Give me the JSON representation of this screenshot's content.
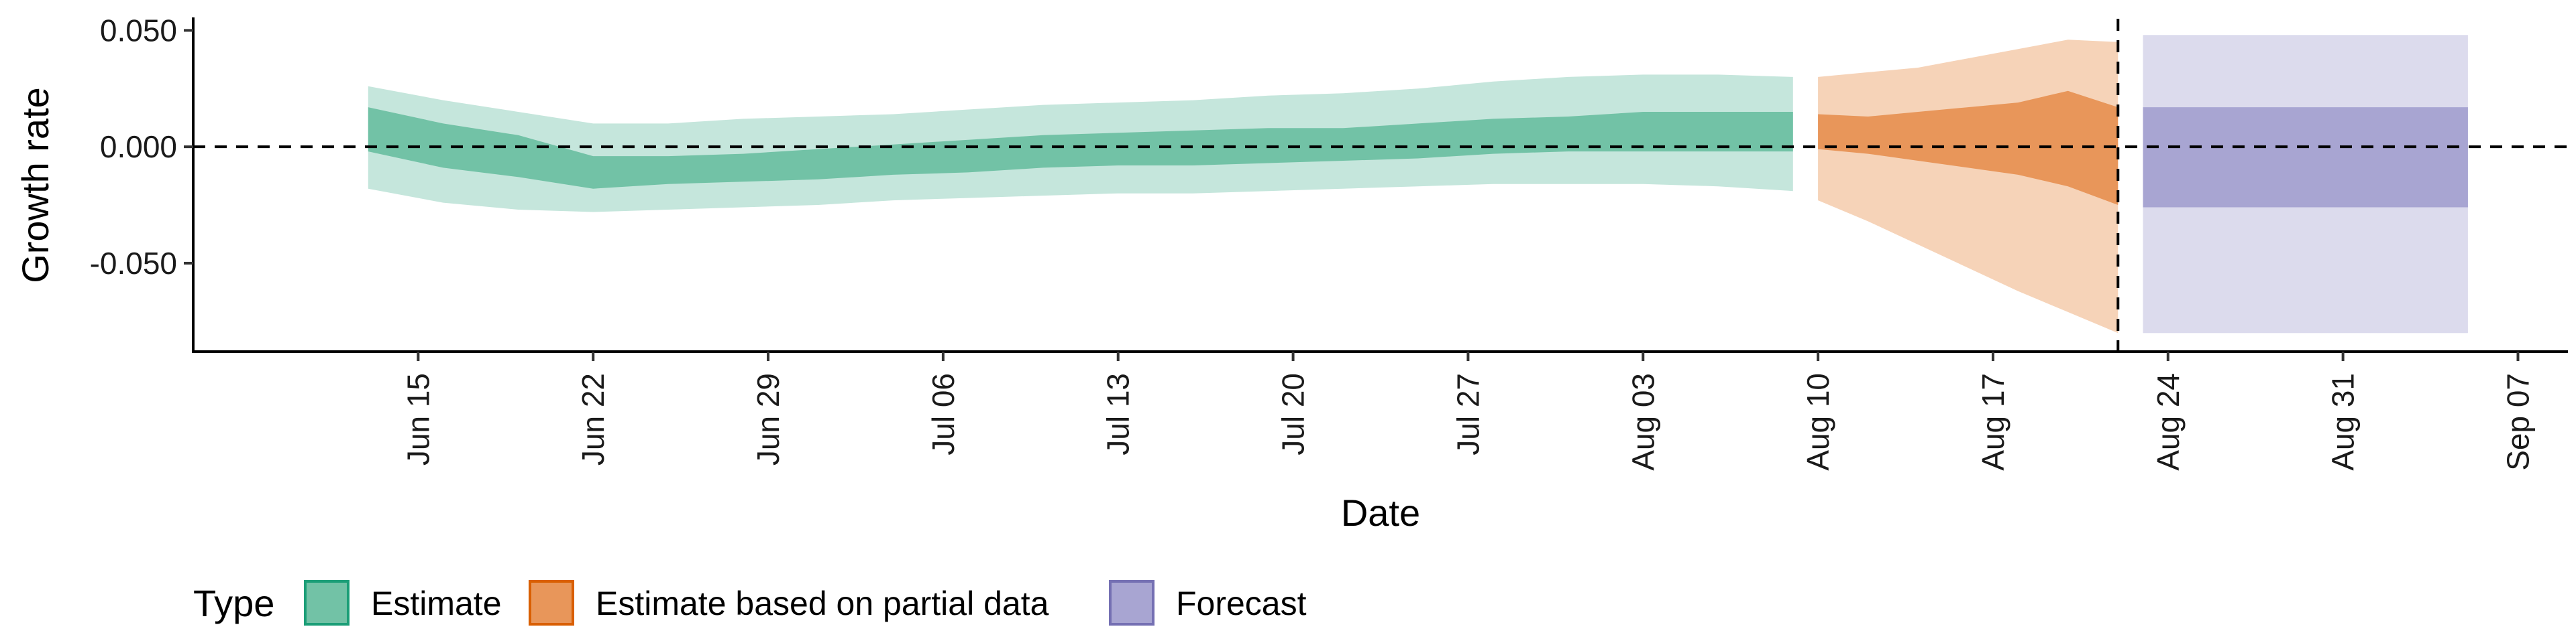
{
  "chart_data": {
    "type": "area",
    "xlabel": "Date",
    "ylabel": "Growth rate",
    "xlim": [
      "2020-06-06",
      "2020-09-09"
    ],
    "ylim": [
      -0.088,
      0.055
    ],
    "x_ticks": [
      "2020-06-15",
      "2020-06-22",
      "2020-06-29",
      "2020-07-06",
      "2020-07-13",
      "2020-07-20",
      "2020-07-27",
      "2020-08-03",
      "2020-08-10",
      "2020-08-17",
      "2020-08-24",
      "2020-08-31",
      "2020-09-07"
    ],
    "x_tick_labels": [
      "Jun 15",
      "Jun 22",
      "Jun 29",
      "Jul 06",
      "Jul 13",
      "Jul 20",
      "Jul 27",
      "Aug 03",
      "Aug 10",
      "Aug 17",
      "Aug 24",
      "Aug 31",
      "Sep 07"
    ],
    "y_ticks": [
      0.05,
      0.0,
      -0.05
    ],
    "y_tick_labels": [
      "0.050",
      "0.000",
      "-0.050"
    ],
    "reference_lines": {
      "horizontal_y": 0.0,
      "vertical_x": "2020-08-22"
    },
    "grid": false,
    "legend": {
      "title": "Type",
      "position": "bottom-left"
    },
    "series": [
      {
        "name": "Estimate",
        "color": "#1b9e77",
        "fill_dark": "#72c2a6",
        "fill_light": "#c5e6dc",
        "x": [
          "2020-06-13",
          "2020-06-16",
          "2020-06-19",
          "2020-06-22",
          "2020-06-25",
          "2020-06-28",
          "2020-07-01",
          "2020-07-04",
          "2020-07-07",
          "2020-07-10",
          "2020-07-13",
          "2020-07-16",
          "2020-07-19",
          "2020-07-22",
          "2020-07-25",
          "2020-07-28",
          "2020-07-31",
          "2020-08-03",
          "2020-08-06",
          "2020-08-09"
        ],
        "median_upper": [
          0.017,
          0.01,
          0.005,
          -0.004,
          -0.004,
          -0.003,
          -0.001,
          0.001,
          0.003,
          0.005,
          0.006,
          0.007,
          0.008,
          0.008,
          0.01,
          0.012,
          0.013,
          0.015,
          0.015,
          0.015
        ],
        "median_lower": [
          -0.002,
          -0.009,
          -0.013,
          -0.018,
          -0.016,
          -0.015,
          -0.014,
          -0.012,
          -0.011,
          -0.009,
          -0.008,
          -0.008,
          -0.007,
          -0.006,
          -0.005,
          -0.003,
          -0.002,
          -0.002,
          -0.002,
          -0.002
        ],
        "outer_upper": [
          0.026,
          0.02,
          0.015,
          0.01,
          0.01,
          0.012,
          0.013,
          0.014,
          0.016,
          0.018,
          0.019,
          0.02,
          0.022,
          0.023,
          0.025,
          0.028,
          0.03,
          0.031,
          0.031,
          0.03
        ],
        "outer_lower": [
          -0.018,
          -0.024,
          -0.027,
          -0.028,
          -0.027,
          -0.026,
          -0.025,
          -0.023,
          -0.022,
          -0.021,
          -0.02,
          -0.02,
          -0.019,
          -0.018,
          -0.017,
          -0.016,
          -0.016,
          -0.016,
          -0.017,
          -0.019
        ]
      },
      {
        "name": "Estimate based on partial data",
        "color": "#d95f02",
        "fill_dark": "#e8965a",
        "fill_light": "#f6d3b8",
        "x": [
          "2020-08-10",
          "2020-08-12",
          "2020-08-14",
          "2020-08-16",
          "2020-08-18",
          "2020-08-20",
          "2020-08-22"
        ],
        "median_upper": [
          0.014,
          0.013,
          0.015,
          0.017,
          0.019,
          0.024,
          0.017
        ],
        "median_lower": [
          -0.001,
          -0.003,
          -0.006,
          -0.009,
          -0.012,
          -0.017,
          -0.025
        ],
        "outer_upper": [
          0.03,
          0.032,
          0.034,
          0.038,
          0.042,
          0.046,
          0.045
        ],
        "outer_lower": [
          -0.023,
          -0.032,
          -0.042,
          -0.052,
          -0.062,
          -0.071,
          -0.08
        ]
      },
      {
        "name": "Forecast",
        "color": "#7570b3",
        "fill_dark": "#a8a5d2",
        "fill_light": "#dcdbed",
        "x": [
          "2020-08-23",
          "2020-09-05"
        ],
        "median_upper": [
          0.017,
          0.017
        ],
        "median_lower": [
          -0.026,
          -0.026
        ],
        "outer_upper": [
          0.048,
          0.048
        ],
        "outer_lower": [
          -0.08,
          -0.08
        ]
      }
    ]
  }
}
